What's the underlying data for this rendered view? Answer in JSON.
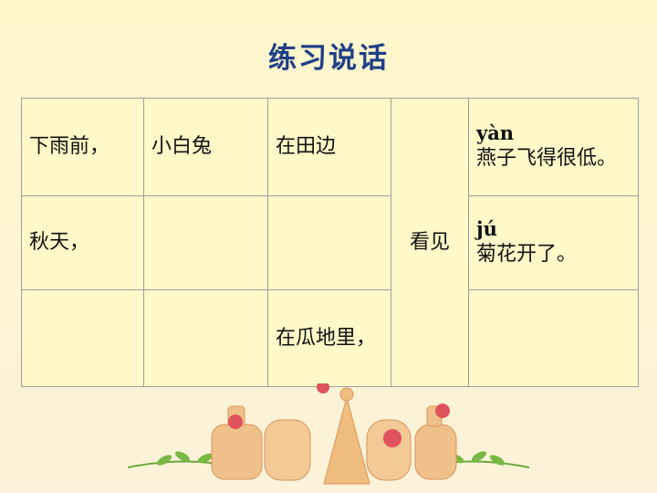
{
  "title": "练习说话",
  "rows": [
    [
      "下雨前，",
      "小白兔",
      "在田边",
      "看见",
      "yàn",
      "燕子飞得很低。"
    ],
    [
      "秋天，",
      "",
      "",
      "",
      "jú",
      "菊花开了。"
    ],
    [
      "",
      "",
      "在瓜地里，",
      "",
      "",
      ""
    ]
  ]
}
